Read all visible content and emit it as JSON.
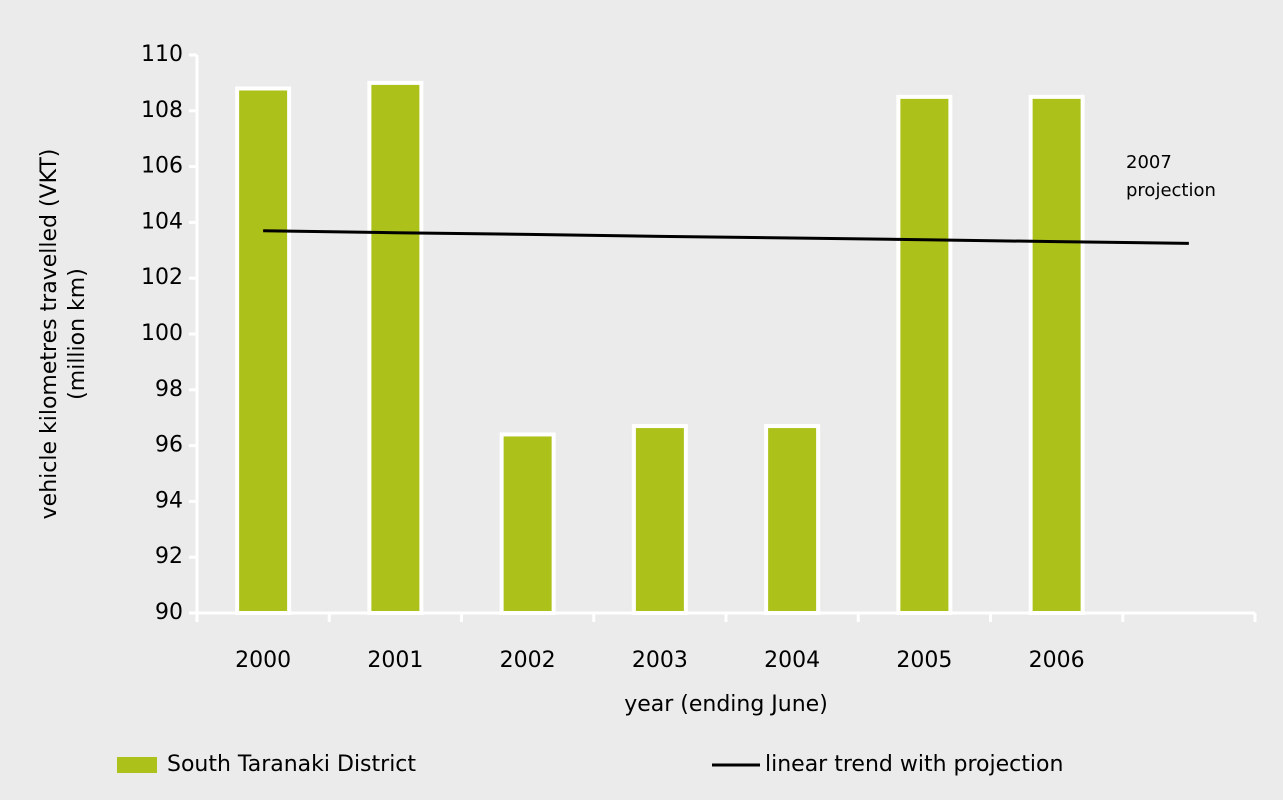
{
  "chart_data": {
    "type": "bar",
    "categories": [
      "2000",
      "2001",
      "2002",
      "2003",
      "2004",
      "2005",
      "2006",
      null
    ],
    "x_label": "year (ending June)",
    "y_label": [
      "vehicle kilometres travelled (VKT)",
      "(million km)"
    ],
    "annotation": [
      "2007",
      "projection"
    ],
    "series": [
      {
        "name": "South Taranaki District",
        "type": "bar",
        "color": "#acc11a",
        "values": [
          108.8,
          109.0,
          96.4,
          96.7,
          96.7,
          108.5,
          108.5,
          null
        ]
      },
      {
        "name": "linear trend with projection",
        "type": "line",
        "color": "#000000",
        "values": [
          103.7,
          103.63,
          103.57,
          103.5,
          103.44,
          103.38,
          103.31,
          103.25
        ]
      }
    ],
    "ylim": [
      90,
      110
    ],
    "yticks": [
      90,
      92,
      94,
      96,
      98,
      100,
      102,
      104,
      106,
      108,
      110
    ],
    "legend": "bottom"
  }
}
